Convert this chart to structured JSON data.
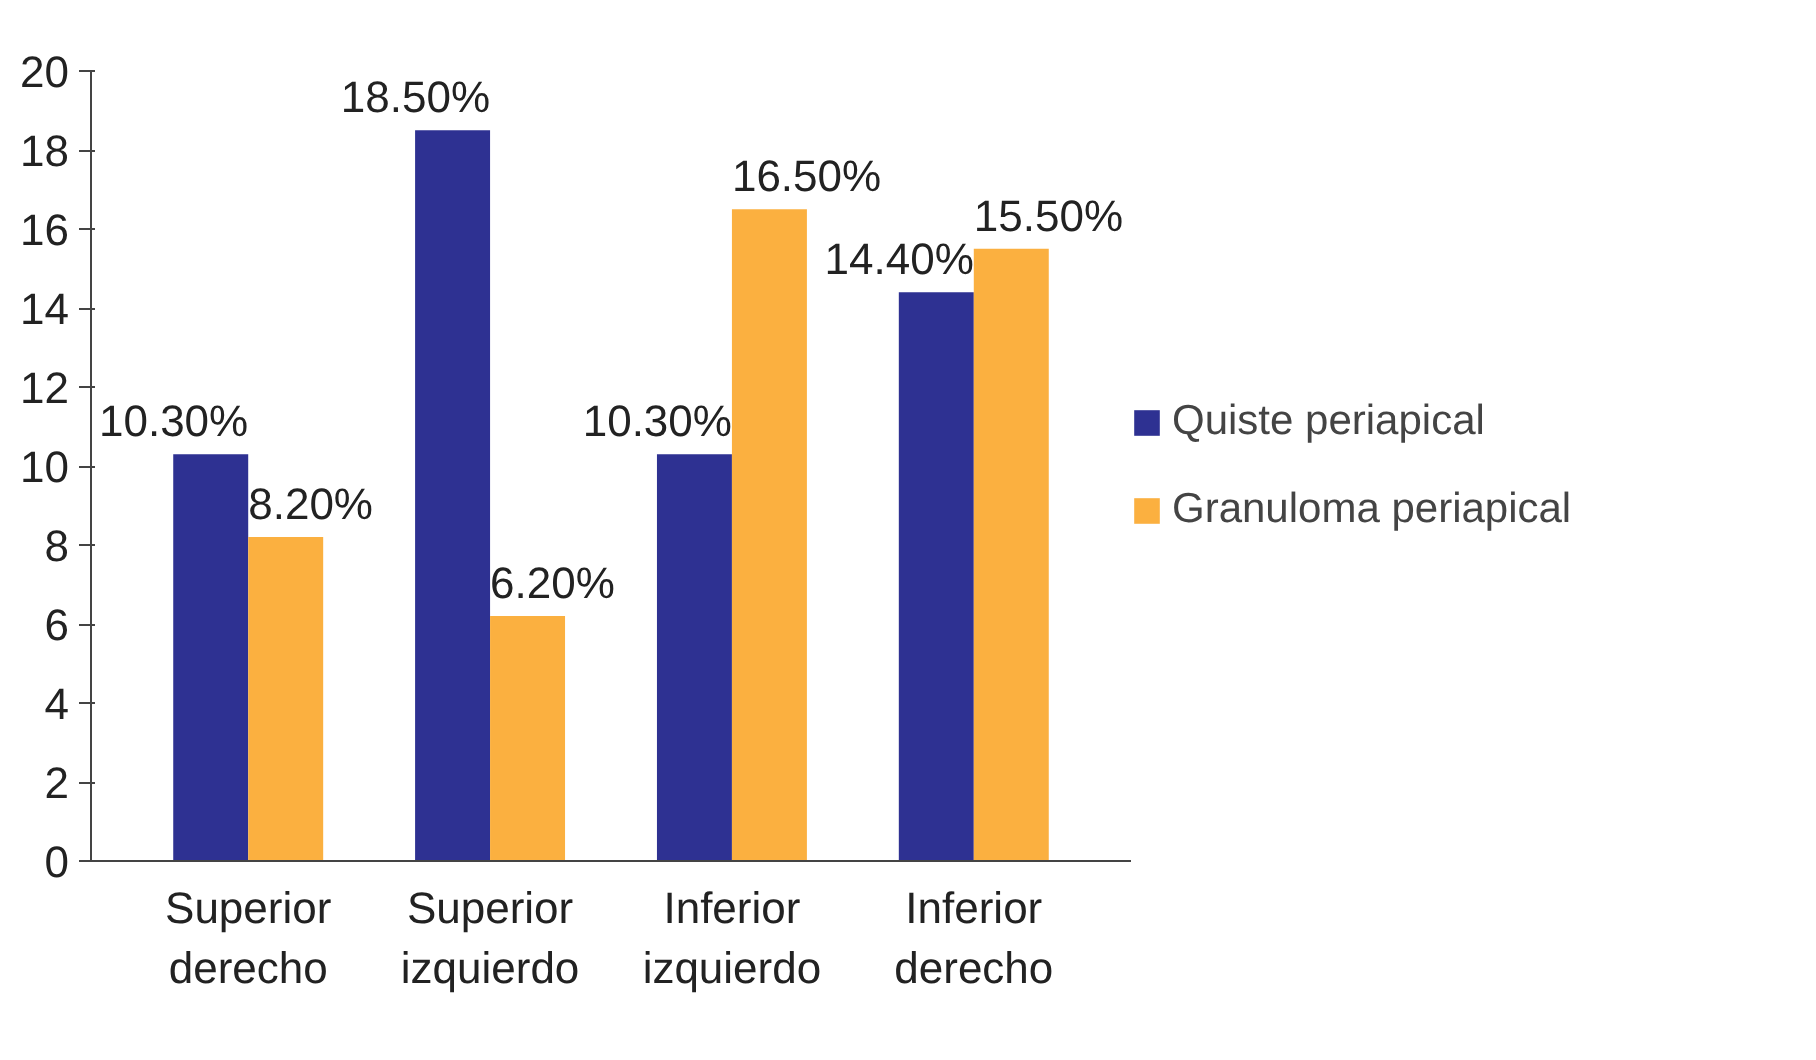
{
  "chart_data": {
    "type": "bar",
    "categories": [
      "Superior\nderecho",
      "Superior\nizquierdo",
      "Inferior\nizquierdo",
      "Inferior\nderecho"
    ],
    "series": [
      {
        "name": "Quiste periapical",
        "color": "#2e3192",
        "values": [
          10.3,
          18.5,
          10.3,
          14.4
        ],
        "value_labels": [
          "10.30%",
          "18.50%",
          "10.30%",
          "14.40%"
        ]
      },
      {
        "name": "Granuloma periapical",
        "color": "#fbb040",
        "values": [
          8.2,
          6.2,
          16.5,
          15.5
        ],
        "value_labels": [
          "8.20%",
          "6.20%",
          "16.50%",
          "15.50%"
        ]
      }
    ],
    "ylim": [
      0,
      20
    ],
    "yticks": [
      0,
      2,
      4,
      6,
      8,
      10,
      12,
      14,
      16,
      18,
      20
    ],
    "grid": false,
    "legend": "right"
  }
}
